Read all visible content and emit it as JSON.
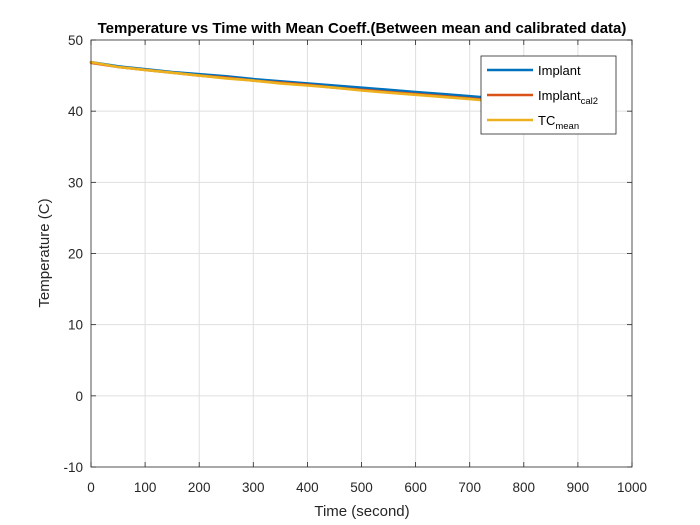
{
  "chart_data": {
    "type": "line",
    "title": "Temperature vs Time with Mean Coeff.(Between mean and calibrated data)",
    "xlabel": "Time (second)",
    "ylabel": "Temperature (C)",
    "xlim": [
      0,
      1000
    ],
    "ylim": [
      -10,
      50
    ],
    "xticks": [
      0,
      100,
      200,
      300,
      400,
      500,
      600,
      700,
      800,
      900,
      1000
    ],
    "yticks": [
      -10,
      0,
      10,
      20,
      30,
      40,
      50
    ],
    "grid": true,
    "legend_position": "top-right",
    "series": [
      {
        "name": "Implant",
        "name_sub": "",
        "color": "#0072BD",
        "x": [
          0,
          50,
          100,
          150,
          200,
          250,
          300,
          350,
          400,
          450,
          500,
          550,
          600,
          650,
          700,
          730
        ],
        "y": [
          46.9,
          46.3,
          45.9,
          45.5,
          45.2,
          44.9,
          44.5,
          44.2,
          43.9,
          43.6,
          43.3,
          43.0,
          42.7,
          42.4,
          42.1,
          41.9
        ]
      },
      {
        "name": "Implant",
        "name_sub": "cal2",
        "color": "#D95319",
        "x": [
          0,
          50,
          100,
          150,
          200,
          250,
          300,
          350,
          400,
          450,
          500,
          550,
          600,
          650,
          700,
          730
        ],
        "y": [
          46.8,
          46.2,
          45.8,
          45.4,
          45.0,
          44.7,
          44.3,
          44.0,
          43.7,
          43.3,
          43.0,
          42.7,
          42.4,
          42.1,
          41.8,
          41.6
        ]
      },
      {
        "name": "TC",
        "name_sub": "mean",
        "color": "#EDB120",
        "x": [
          0,
          50,
          100,
          150,
          200,
          250,
          300,
          350,
          400,
          450,
          500,
          550,
          600,
          650,
          700,
          730
        ],
        "y": [
          46.9,
          46.2,
          45.8,
          45.4,
          45.0,
          44.6,
          44.3,
          43.9,
          43.6,
          43.3,
          42.9,
          42.6,
          42.3,
          42.0,
          41.7,
          41.5
        ]
      }
    ]
  }
}
